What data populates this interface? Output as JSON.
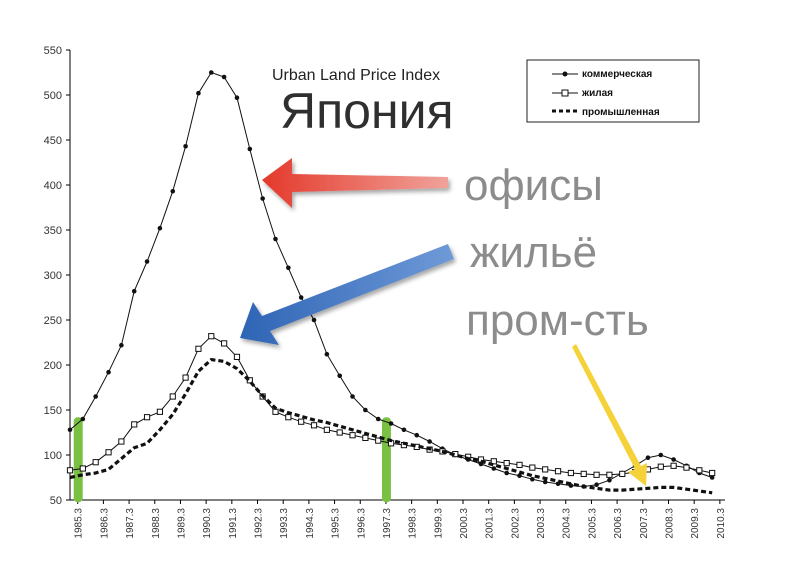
{
  "chart_data": {
    "type": "line",
    "title": "Urban Land Price Index",
    "overlay_title": "Япония",
    "x_tick_labels": [
      "1985.3",
      "1986.3",
      "1987.3",
      "1988.3",
      "1989.3",
      "1990.3",
      "1991.3",
      "1992.3",
      "1993.3",
      "1994.3",
      "1995.3",
      "1996.3",
      "1997.3",
      "1998.3",
      "1999.3",
      "2000.3",
      "2001.3",
      "2002.3",
      "2003.3",
      "2004.3",
      "2005.3",
      "2006.3",
      "2007.3",
      "2008.3",
      "2009.3",
      "2010.3"
    ],
    "xlim": [
      1985.0,
      2010.5
    ],
    "ylim": [
      50,
      550
    ],
    "y_ticks": [
      50,
      100,
      150,
      200,
      250,
      300,
      350,
      400,
      450,
      500,
      550
    ],
    "legend_position": "top-right",
    "grid": false,
    "series": [
      {
        "name": "коммерческая",
        "marker": "dot",
        "color": "#111111",
        "x": [
          1985.0,
          1985.5,
          1986.0,
          1986.5,
          1987.0,
          1987.5,
          1988.0,
          1988.5,
          1989.0,
          1989.5,
          1990.0,
          1990.5,
          1991.0,
          1991.5,
          1992.0,
          1992.5,
          1993.0,
          1993.5,
          1994.0,
          1994.5,
          1995.0,
          1995.5,
          1996.0,
          1996.5,
          1997.0,
          1997.5,
          1998.0,
          1998.5,
          1999.0,
          1999.5,
          2000.0,
          2000.5,
          2001.0,
          2001.5,
          2002.0,
          2002.5,
          2003.0,
          2003.5,
          2004.0,
          2004.5,
          2005.0,
          2005.5,
          2006.0,
          2006.5,
          2007.0,
          2007.5,
          2008.0,
          2008.5,
          2009.0,
          2009.5,
          2010.0
        ],
        "y": [
          128,
          140,
          165,
          192,
          222,
          282,
          315,
          352,
          393,
          443,
          502,
          525,
          520,
          497,
          440,
          385,
          340,
          308,
          275,
          250,
          212,
          188,
          165,
          150,
          140,
          135,
          128,
          122,
          115,
          107,
          100,
          95,
          90,
          85,
          80,
          77,
          73,
          70,
          68,
          66,
          65,
          67,
          72,
          80,
          88,
          97,
          100,
          95,
          88,
          80,
          75
        ]
      },
      {
        "name": "жилая",
        "marker": "square",
        "color": "#111111",
        "x": [
          1985.0,
          1985.5,
          1986.0,
          1986.5,
          1987.0,
          1987.5,
          1988.0,
          1988.5,
          1989.0,
          1989.5,
          1990.0,
          1990.5,
          1991.0,
          1991.5,
          1992.0,
          1992.5,
          1993.0,
          1993.5,
          1994.0,
          1994.5,
          1995.0,
          1995.5,
          1996.0,
          1996.5,
          1997.0,
          1997.5,
          1998.0,
          1998.5,
          1999.0,
          1999.5,
          2000.0,
          2000.5,
          2001.0,
          2001.5,
          2002.0,
          2002.5,
          2003.0,
          2003.5,
          2004.0,
          2004.5,
          2005.0,
          2005.5,
          2006.0,
          2006.5,
          2007.0,
          2007.5,
          2008.0,
          2008.5,
          2009.0,
          2009.5,
          2010.0
        ],
        "y": [
          83,
          85,
          92,
          103,
          115,
          134,
          142,
          148,
          165,
          186,
          218,
          232,
          224,
          209,
          183,
          165,
          148,
          142,
          137,
          133,
          128,
          125,
          122,
          119,
          116,
          113,
          111,
          109,
          106,
          104,
          101,
          98,
          95,
          93,
          91,
          89,
          86,
          84,
          82,
          80,
          79,
          78,
          78,
          79,
          81,
          84,
          87,
          88,
          86,
          83,
          80
        ]
      },
      {
        "name": "промышленная",
        "marker": "dash-dot",
        "color": "#111111",
        "x": [
          1985.0,
          1985.5,
          1986.0,
          1986.5,
          1987.0,
          1987.5,
          1988.0,
          1988.5,
          1989.0,
          1989.5,
          1990.0,
          1990.5,
          1991.0,
          1991.5,
          1992.0,
          1992.5,
          1993.0,
          1993.5,
          1994.0,
          1994.5,
          1995.0,
          1995.5,
          1996.0,
          1996.5,
          1997.0,
          1997.5,
          1998.0,
          1998.5,
          1999.0,
          1999.5,
          2000.0,
          2000.5,
          2001.0,
          2001.5,
          2002.0,
          2002.5,
          2003.0,
          2003.5,
          2004.0,
          2004.5,
          2005.0,
          2005.5,
          2006.0,
          2006.5,
          2007.0,
          2007.5,
          2008.0,
          2008.5,
          2009.0,
          2009.5,
          2010.0
        ],
        "y": [
          75,
          78,
          80,
          84,
          96,
          108,
          113,
          128,
          145,
          168,
          193,
          206,
          204,
          196,
          182,
          166,
          152,
          147,
          143,
          139,
          136,
          132,
          128,
          124,
          120,
          116,
          113,
          110,
          107,
          104,
          100,
          96,
          93,
          89,
          85,
          81,
          77,
          74,
          71,
          68,
          65,
          63,
          61,
          61,
          62,
          63,
          64,
          64,
          62,
          60,
          58
        ]
      }
    ],
    "annotations": [
      {
        "text": "офисы",
        "arrow_color": "#e23a2e"
      },
      {
        "text": "жильё",
        "arrow_color": "#3a73c4"
      },
      {
        "text": "пром-сть",
        "arrow_color": "#f5d23a"
      }
    ],
    "highlight_bars": {
      "color": "#7ac143",
      "x": [
        1985.3,
        1997.3
      ]
    }
  }
}
